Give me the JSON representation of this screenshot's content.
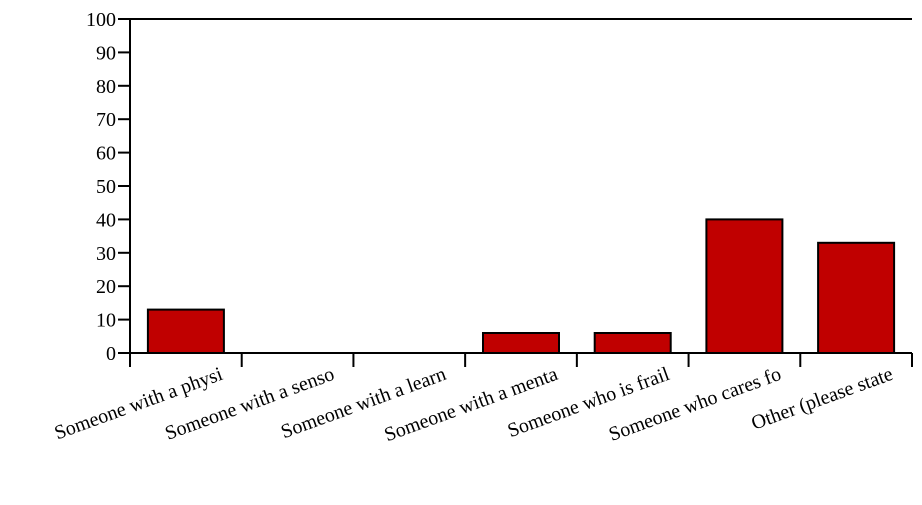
{
  "chart_data": {
    "type": "bar",
    "categories": [
      "Someone with a physi",
      "Someone with a senso",
      "Someone with a learn",
      "Someone with a menta",
      "Someone who is frail",
      "Someone who cares fo",
      "Other (please state"
    ],
    "values": [
      13,
      0,
      0,
      6,
      6,
      40,
      33
    ],
    "yticks": [
      0,
      10,
      20,
      30,
      40,
      50,
      60,
      70,
      80,
      90,
      100
    ],
    "ylim": [
      0,
      100
    ],
    "bar_color": "#c00000",
    "grid": false
  }
}
